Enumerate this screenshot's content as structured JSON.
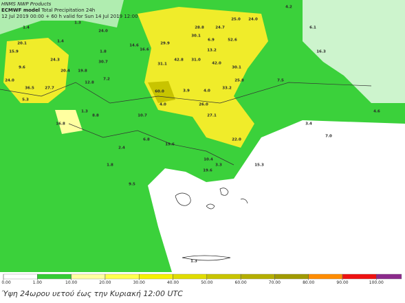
{
  "header": {
    "source": "HNMS NWP Products",
    "model": "ECMWF model",
    "field": "Total Precipitation 24h",
    "valid": "12 Jul 2019 00:00 + 60 h valid for Sun 14 Jul 2019 12:00"
  },
  "map": {
    "labels": [
      "4.2",
      "25.0",
      "24.0",
      "28.8",
      "24.7",
      "6.1",
      "1.3",
      "24.0",
      "1.4",
      "30.1",
      "52.6",
      "6.9",
      "20.1",
      "29.9",
      "14.6",
      "16.6",
      "15.9",
      "1.8",
      "1.4",
      "13.2",
      "16.3",
      "24.3",
      "30.7",
      "42.8",
      "31.0",
      "42.0",
      "31.1",
      "9.6",
      "20.4",
      "19.8",
      "30.1",
      "24.0",
      "12.8",
      "7.2",
      "25.8",
      "7.5",
      "36.5",
      "27.7",
      "3.9",
      "4.0",
      "33.2",
      "60.0",
      "5.3",
      "4.0",
      "26.0",
      "1.3",
      "8.8",
      "10.7",
      "27.1",
      "16.8",
      "4.6",
      "3.4",
      "7.0",
      "22.0",
      "6.8",
      "19.6",
      "2.4",
      "1.8",
      "10.4",
      "3.3",
      "15.3",
      "19.6",
      "9.5",
      "1.3"
    ]
  },
  "legend": {
    "ticks": [
      {
        "value": 0,
        "label": "0.00"
      },
      {
        "value": 1,
        "label": "1.00"
      },
      {
        "value": 10,
        "label": "10.00"
      },
      {
        "value": 20,
        "label": "20.00"
      },
      {
        "value": 30,
        "label": "30.00"
      },
      {
        "value": 40,
        "label": "40.00"
      },
      {
        "value": 50,
        "label": "50.00"
      },
      {
        "value": 60,
        "label": "60.00"
      },
      {
        "value": 70,
        "label": "70.00"
      },
      {
        "value": 80,
        "label": "80.00"
      },
      {
        "value": 90,
        "label": "90.00"
      },
      {
        "value": 100,
        "label": "100.00"
      }
    ],
    "colors": [
      "#ffffff",
      "#33cc33",
      "#ffffa0",
      "#ffff4d",
      "#f5f000",
      "#e0dc00",
      "#c8c400",
      "#b4ae00",
      "#a09a00",
      "#ff8c00",
      "#ee1111",
      "#8b2a8b"
    ]
  },
  "caption": "Ύψη 24ωρου υετού έως την Κυριακή 12:00 UTC"
}
